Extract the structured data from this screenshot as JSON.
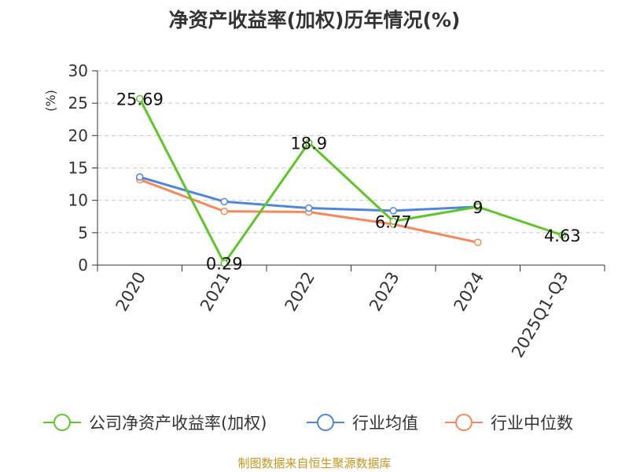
{
  "chart_data": {
    "type": "line",
    "title": "净资产收益率(加权)历年情况(%)",
    "ylabel": "(%)",
    "categories": [
      "2020",
      "2021",
      "2022",
      "2023",
      "2024",
      "2025Q1-Q3"
    ],
    "ylim": [
      0,
      30
    ],
    "yticks": [
      0,
      5,
      10,
      15,
      20,
      25,
      30
    ],
    "grid": "horizontal-dashed",
    "legend_position": "bottom",
    "series": [
      {
        "name": "公司净资产收益率(加权)",
        "color": "#5ec629",
        "values": [
          25.69,
          0.29,
          18.9,
          6.77,
          9,
          4.63
        ],
        "labels": [
          "25.69",
          "0.29",
          "18.9",
          "6.77",
          "9",
          "4.63"
        ]
      },
      {
        "name": "行业均值",
        "color": "#4f86dd",
        "values": [
          13.6,
          9.8,
          8.8,
          8.4,
          9.0,
          null
        ]
      },
      {
        "name": "行业中位数",
        "color": "#f6895a",
        "values": [
          13.2,
          8.3,
          8.2,
          6.3,
          3.5,
          null
        ]
      }
    ]
  },
  "footer": "制图数据来自恒生聚源数据库"
}
